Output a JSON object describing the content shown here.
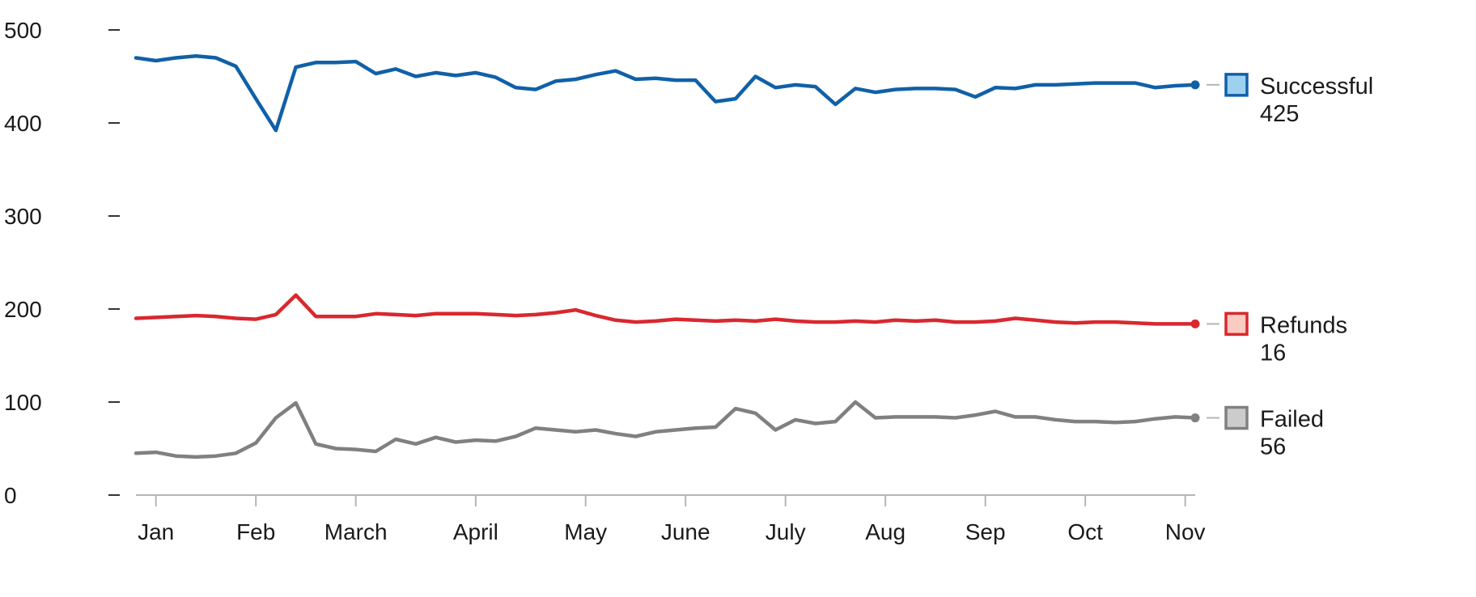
{
  "chart_data": {
    "type": "line",
    "title": "",
    "xlabel": "",
    "ylabel": "",
    "ylim": [
      0,
      500
    ],
    "y_ticks": [
      0,
      100,
      200,
      300,
      400,
      500
    ],
    "x_ticks": [
      {
        "label": "Jan",
        "week": 1
      },
      {
        "label": "Feb",
        "week": 6
      },
      {
        "label": "March",
        "week": 11
      },
      {
        "label": "April",
        "week": 17
      },
      {
        "label": "May",
        "week": 22.5
      },
      {
        "label": "June",
        "week": 27.5
      },
      {
        "label": "July",
        "week": 32.5
      },
      {
        "label": "Aug",
        "week": 37.5
      },
      {
        "label": "Sep",
        "week": 42.5
      },
      {
        "label": "Oct",
        "week": 47.5
      },
      {
        "label": "Nov",
        "week": 52.5
      }
    ],
    "x": [
      0,
      1,
      2,
      3,
      4,
      5,
      6,
      7,
      8,
      9,
      10,
      11,
      12,
      13,
      14,
      15,
      16,
      17,
      18,
      19,
      20,
      21,
      22,
      23,
      24,
      25,
      26,
      27,
      28,
      29,
      30,
      31,
      32,
      33,
      34,
      35,
      36,
      37,
      38,
      39,
      40,
      41,
      42,
      43,
      44,
      45,
      46,
      47,
      48,
      49,
      50,
      51,
      52,
      53
    ],
    "grid": false,
    "legend_position": "right",
    "series": [
      {
        "name": "Successful",
        "value_label": "425",
        "color": "#1060a8",
        "swatch_fill": "#9dd1f0",
        "values": [
          470,
          467,
          470,
          472,
          470,
          461,
          426,
          392,
          460,
          465,
          465,
          466,
          453,
          458,
          450,
          454,
          451,
          454,
          449,
          438,
          436,
          445,
          447,
          452,
          456,
          447,
          448,
          446,
          446,
          423,
          426,
          450,
          438,
          441,
          439,
          420,
          437,
          433,
          436,
          437,
          437,
          436,
          428,
          438,
          437,
          441,
          441,
          442,
          443,
          443,
          443,
          438,
          440,
          441
        ]
      },
      {
        "name": "Refunds",
        "value_label": "16",
        "color": "#d8282e",
        "swatch_fill": "#f9cbc1",
        "values": [
          190,
          191,
          192,
          193,
          192,
          190,
          189,
          194,
          215,
          192,
          192,
          192,
          195,
          194,
          193,
          195,
          195,
          195,
          194,
          193,
          194,
          196,
          199,
          193,
          188,
          186,
          187,
          189,
          188,
          187,
          188,
          187,
          189,
          187,
          186,
          186,
          187,
          186,
          188,
          187,
          188,
          186,
          186,
          187,
          190,
          188,
          186,
          185,
          186,
          186,
          185,
          184,
          184,
          184
        ]
      },
      {
        "name": "Failed",
        "value_label": "56",
        "color": "#808080",
        "swatch_fill": "#cccccc",
        "values": [
          45,
          46,
          42,
          41,
          42,
          45,
          56,
          83,
          99,
          55,
          50,
          49,
          47,
          60,
          55,
          62,
          57,
          59,
          58,
          63,
          72,
          70,
          68,
          70,
          66,
          63,
          68,
          70,
          72,
          73,
          93,
          88,
          70,
          81,
          77,
          79,
          100,
          83,
          84,
          84,
          84,
          83,
          86,
          90,
          84,
          84,
          81,
          79,
          79,
          78,
          79,
          82,
          84,
          83
        ]
      }
    ]
  }
}
